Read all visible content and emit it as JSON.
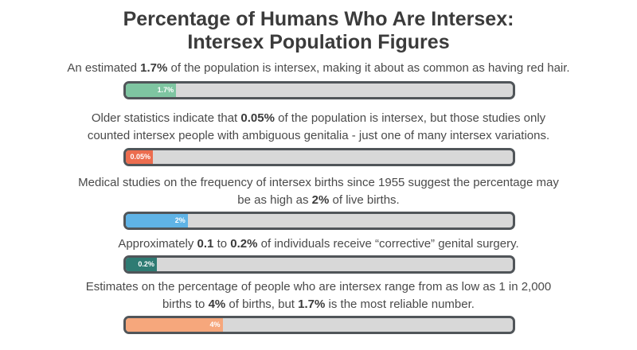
{
  "header": {
    "title_line1": "Percentage of Humans Who Are Intersex:",
    "title_line2": "Intersex Population Figures"
  },
  "chart_data": {
    "type": "bar",
    "title": "Percentage of Humans Who Are Intersex: Intersex Population Figures",
    "categories": [
      "1.7%",
      "0.05%",
      "2%",
      "0.2%",
      "4%"
    ],
    "values": [
      1.7,
      0.05,
      2,
      0.2,
      4
    ],
    "fill_fraction": [
      0.13,
      0.07,
      0.16,
      0.08,
      0.25
    ],
    "colors": [
      "#7ec5a1",
      "#ec6d4f",
      "#5fb3e6",
      "#2e7b73",
      "#f6a77c"
    ]
  },
  "items": [
    {
      "desc_parts": [
        "An estimated ",
        "1.7%",
        " of the population is intersex, making it about as common as having red hair."
      ],
      "bar_label": "1.7%"
    },
    {
      "desc_parts": [
        "Older statistics indicate that ",
        "0.05%",
        " of the population is intersex, but those studies only",
        "counted intersex people with ambiguous genitalia - just one of many intersex variations."
      ],
      "bar_label": "0.05%"
    },
    {
      "desc_parts": [
        "Medical studies on the frequency of intersex births since 1955 suggest the percentage may",
        "be as high as ",
        "2%",
        " of live births."
      ],
      "bar_label": "2%"
    },
    {
      "desc_parts": [
        "Approximately ",
        "0.1",
        " to ",
        "0.2%",
        " of individuals receive “corrective” genital surgery."
      ],
      "bar_label": "0.2%"
    },
    {
      "desc_parts": [
        "Estimates on the percentage of people who are intersex range from as low as 1 in 2,000",
        "births to ",
        "4%",
        " of births, but ",
        "1.7%",
        " is the most reliable number."
      ],
      "bar_label": "4%"
    }
  ]
}
